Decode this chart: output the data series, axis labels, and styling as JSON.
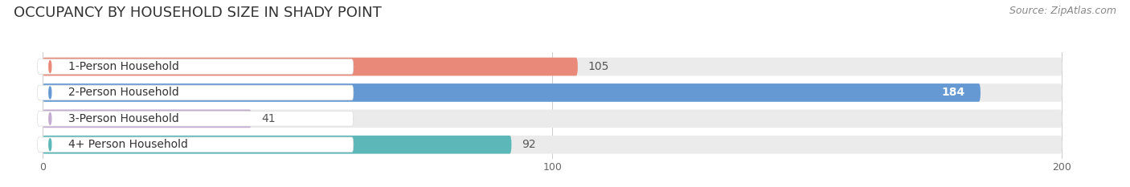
{
  "title": "OCCUPANCY BY HOUSEHOLD SIZE IN SHADY POINT",
  "source": "Source: ZipAtlas.com",
  "categories": [
    "1-Person Household",
    "2-Person Household",
    "3-Person Household",
    "4+ Person Household"
  ],
  "values": [
    105,
    184,
    41,
    92
  ],
  "bar_colors": [
    "#e8897a",
    "#6499d4",
    "#c4acd0",
    "#5cb8b8"
  ],
  "bar_bg_colors": [
    "#ebebeb",
    "#ebebeb",
    "#ebebeb",
    "#ebebeb"
  ],
  "label_circle_colors": [
    "#e8897a",
    "#6499d4",
    "#c4acd0",
    "#5cb8b8"
  ],
  "value_colors": [
    "#555555",
    "#ffffff",
    "#555555",
    "#555555"
  ],
  "xlim_max": 210,
  "data_max": 200,
  "xticks": [
    0,
    100,
    200
  ],
  "background_color": "#ffffff",
  "title_fontsize": 13,
  "source_fontsize": 9,
  "label_fontsize": 10,
  "value_fontsize": 10
}
